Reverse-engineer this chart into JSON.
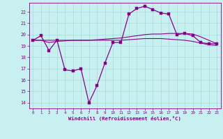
{
  "xlabel": "Windchill (Refroidissement éolien,°C)",
  "xlim": [
    -0.5,
    23.5
  ],
  "ylim": [
    13.5,
    22.8
  ],
  "yticks": [
    14,
    15,
    16,
    17,
    18,
    19,
    20,
    21,
    22
  ],
  "xticks": [
    0,
    1,
    2,
    3,
    4,
    5,
    6,
    7,
    8,
    9,
    10,
    11,
    12,
    13,
    14,
    15,
    16,
    17,
    18,
    19,
    20,
    21,
    22,
    23
  ],
  "bg_color": "#c8f0f0",
  "grid_color": "#aadddd",
  "line_color": "#880088",
  "line1_x": [
    0,
    1,
    2,
    3,
    4,
    5,
    6,
    7,
    8,
    9,
    10,
    11,
    12,
    13,
    14,
    15,
    16,
    17,
    18,
    19,
    20,
    21,
    22,
    23
  ],
  "line1_y": [
    19.5,
    19.9,
    18.6,
    19.5,
    16.9,
    16.8,
    17.0,
    14.0,
    15.5,
    17.5,
    19.3,
    19.3,
    21.8,
    22.3,
    22.5,
    22.2,
    21.9,
    21.8,
    20.0,
    20.1,
    19.9,
    19.3,
    19.2,
    19.2
  ],
  "line2_x": [
    0,
    1,
    2,
    3,
    4,
    5,
    6,
    7,
    8,
    9,
    10,
    11,
    12,
    13,
    14,
    15,
    16,
    17,
    18,
    19,
    20,
    21,
    22,
    23
  ],
  "line2_y": [
    19.5,
    19.5,
    19.5,
    19.5,
    19.5,
    19.5,
    19.5,
    19.5,
    19.5,
    19.5,
    19.5,
    19.5,
    19.55,
    19.6,
    19.65,
    19.65,
    19.65,
    19.6,
    19.55,
    19.5,
    19.4,
    19.25,
    19.1,
    19.05
  ],
  "line3_x": [
    0,
    1,
    2,
    3,
    4,
    5,
    6,
    7,
    8,
    9,
    10,
    11,
    12,
    13,
    14,
    15,
    16,
    17,
    18,
    19,
    20,
    21,
    22,
    23
  ],
  "line3_y": [
    19.5,
    19.5,
    19.3,
    19.4,
    19.45,
    19.5,
    19.5,
    19.5,
    19.55,
    19.6,
    19.65,
    19.7,
    19.8,
    19.9,
    20.0,
    20.05,
    20.05,
    20.1,
    20.1,
    20.1,
    20.05,
    19.8,
    19.5,
    19.2
  ]
}
